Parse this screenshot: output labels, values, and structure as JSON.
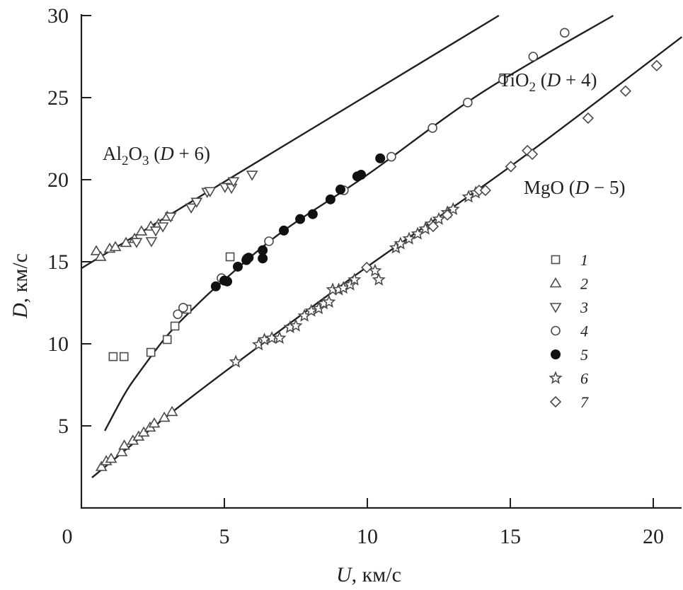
{
  "chart_data": {
    "type": "scatter",
    "title": "",
    "xlabel": {
      "var": "U",
      "unit": ", км/с"
    },
    "ylabel": {
      "var": "D",
      "unit": ", км/с"
    },
    "xlim": [
      0,
      21
    ],
    "ylim": [
      0,
      30
    ],
    "xticks": [
      "0",
      "5",
      "10",
      "15",
      "20"
    ],
    "yticks": [
      "5",
      "10",
      "15",
      "20",
      "25",
      "30"
    ],
    "legend_position": "right",
    "annotations": [
      {
        "main": "Al",
        "sub1": "2",
        "mid": "O",
        "sub2": "3",
        "rest": " (",
        "var": "D",
        "tail": " + 6)"
      },
      {
        "main": "TiO",
        "sub1": "2",
        "mid": "",
        "sub2": "",
        "rest": " (",
        "var": "D",
        "tail": " + 4)"
      },
      {
        "main": "MgO",
        "sub1": "",
        "mid": "",
        "sub2": "",
        "rest": " (",
        "var": "D",
        "tail": " − 5)"
      }
    ],
    "fit_lines": [
      {
        "name": "Al2O3",
        "points": [
          [
            0,
            14.6
          ],
          [
            14.6,
            30
          ]
        ]
      },
      {
        "name": "TiO2",
        "points": [
          [
            0.82,
            4.7
          ],
          [
            1.5,
            6.9
          ],
          [
            2,
            8.2
          ],
          [
            3,
            10.5
          ],
          [
            4,
            12.3
          ],
          [
            5,
            13.9
          ],
          [
            7,
            16.8
          ],
          [
            10,
            20.3
          ],
          [
            14,
            25.3
          ],
          [
            18.6,
            30
          ]
        ]
      },
      {
        "name": "MgO",
        "points": [
          [
            0.37,
            1.85
          ],
          [
            3,
            5.6
          ],
          [
            5.4,
            8.8
          ],
          [
            10,
            14.7
          ],
          [
            15,
            20.8
          ],
          [
            21,
            28.7
          ]
        ]
      }
    ],
    "series": [
      {
        "name": "1",
        "marker": "square",
        "points": [
          [
            1.11,
            9.22
          ],
          [
            1.49,
            9.22
          ],
          [
            2.43,
            9.48
          ],
          [
            3.0,
            10.26
          ],
          [
            3.27,
            11.08
          ],
          [
            3.69,
            12.11
          ],
          [
            5.2,
            15.3
          ]
        ]
      },
      {
        "name": "2",
        "marker": "triangle-up",
        "points": [
          [
            0.7,
            2.5
          ],
          [
            0.87,
            2.85
          ],
          [
            1.04,
            3.0
          ],
          [
            1.41,
            3.4
          ],
          [
            1.5,
            3.8
          ],
          [
            1.8,
            4.1
          ],
          [
            2.0,
            4.35
          ],
          [
            2.18,
            4.6
          ],
          [
            2.4,
            4.9
          ],
          [
            2.55,
            5.15
          ],
          [
            2.9,
            5.5
          ],
          [
            3.17,
            5.85
          ],
          [
            0.52,
            15.65
          ],
          [
            0.67,
            15.3
          ],
          [
            0.99,
            15.8
          ],
          [
            1.19,
            15.9
          ],
          [
            1.56,
            16.15
          ],
          [
            1.86,
            16.4
          ],
          [
            2.1,
            16.85
          ],
          [
            2.43,
            17.15
          ],
          [
            2.7,
            17.3
          ],
          [
            3.0,
            17.75
          ]
        ]
      },
      {
        "name": "3",
        "marker": "triangle-down",
        "points": [
          [
            1.93,
            16.2
          ],
          [
            2.45,
            16.25
          ],
          [
            2.6,
            16.9
          ],
          [
            2.85,
            17.15
          ],
          [
            3.12,
            17.75
          ],
          [
            3.84,
            18.3
          ],
          [
            4.03,
            18.65
          ],
          [
            4.4,
            19.25
          ],
          [
            4.5,
            19.3
          ],
          [
            5.02,
            19.55
          ],
          [
            5.25,
            19.5
          ],
          [
            5.32,
            19.9
          ],
          [
            5.97,
            20.3
          ]
        ]
      },
      {
        "name": "4",
        "marker": "circle-open",
        "points": [
          [
            3.37,
            11.8
          ],
          [
            3.56,
            12.2
          ],
          [
            4.9,
            14.0
          ],
          [
            5.79,
            15.2
          ],
          [
            6.56,
            16.25
          ],
          [
            9.18,
            19.35
          ],
          [
            10.84,
            21.4
          ],
          [
            12.28,
            23.15
          ],
          [
            13.51,
            24.7
          ],
          [
            14.75,
            26.1
          ],
          [
            15.8,
            27.5
          ],
          [
            16.9,
            28.95
          ]
        ]
      },
      {
        "name": "5",
        "marker": "circle-filled",
        "points": [
          [
            4.7,
            13.5
          ],
          [
            5.0,
            13.85
          ],
          [
            5.1,
            13.8
          ],
          [
            5.47,
            14.7
          ],
          [
            5.77,
            15.1
          ],
          [
            5.85,
            15.25
          ],
          [
            6.34,
            15.7
          ],
          [
            6.34,
            15.2
          ],
          [
            7.08,
            16.9
          ],
          [
            7.65,
            17.6
          ],
          [
            8.09,
            17.9
          ],
          [
            8.71,
            18.8
          ],
          [
            9.06,
            19.4
          ],
          [
            9.65,
            20.2
          ],
          [
            9.78,
            20.3
          ],
          [
            10.45,
            21.3
          ]
        ]
      },
      {
        "name": "6",
        "marker": "star",
        "points": [
          [
            5.4,
            8.9
          ],
          [
            6.2,
            9.95
          ],
          [
            6.4,
            10.25
          ],
          [
            6.66,
            10.35
          ],
          [
            6.93,
            10.35
          ],
          [
            7.3,
            11.0
          ],
          [
            7.5,
            11.1
          ],
          [
            7.8,
            11.7
          ],
          [
            8.04,
            12.0
          ],
          [
            8.3,
            12.15
          ],
          [
            8.47,
            12.45
          ],
          [
            8.66,
            12.55
          ],
          [
            8.79,
            13.3
          ],
          [
            9.0,
            13.3
          ],
          [
            9.16,
            13.4
          ],
          [
            9.4,
            13.6
          ],
          [
            9.55,
            13.9
          ],
          [
            10.27,
            14.45
          ],
          [
            10.4,
            13.9
          ],
          [
            11.0,
            15.85
          ],
          [
            11.16,
            16.1
          ],
          [
            11.46,
            16.4
          ],
          [
            11.76,
            16.7
          ],
          [
            12.03,
            17.0
          ],
          [
            12.23,
            17.3
          ],
          [
            12.5,
            17.6
          ],
          [
            12.8,
            18.0
          ],
          [
            13.0,
            18.2
          ],
          [
            13.54,
            18.95
          ],
          [
            13.79,
            19.2
          ]
        ]
      },
      {
        "name": "7",
        "marker": "diamond",
        "points": [
          [
            9.98,
            14.65
          ],
          [
            12.3,
            17.15
          ],
          [
            12.8,
            17.85
          ],
          [
            13.91,
            19.35
          ],
          [
            14.13,
            19.35
          ],
          [
            15.02,
            20.8
          ],
          [
            15.6,
            21.77
          ],
          [
            15.77,
            21.55
          ],
          [
            17.72,
            23.75
          ],
          [
            19.03,
            25.4
          ],
          [
            20.12,
            26.95
          ]
        ]
      }
    ],
    "colors": {
      "ink": "#231f20",
      "marker": "#4a4a4a"
    }
  }
}
